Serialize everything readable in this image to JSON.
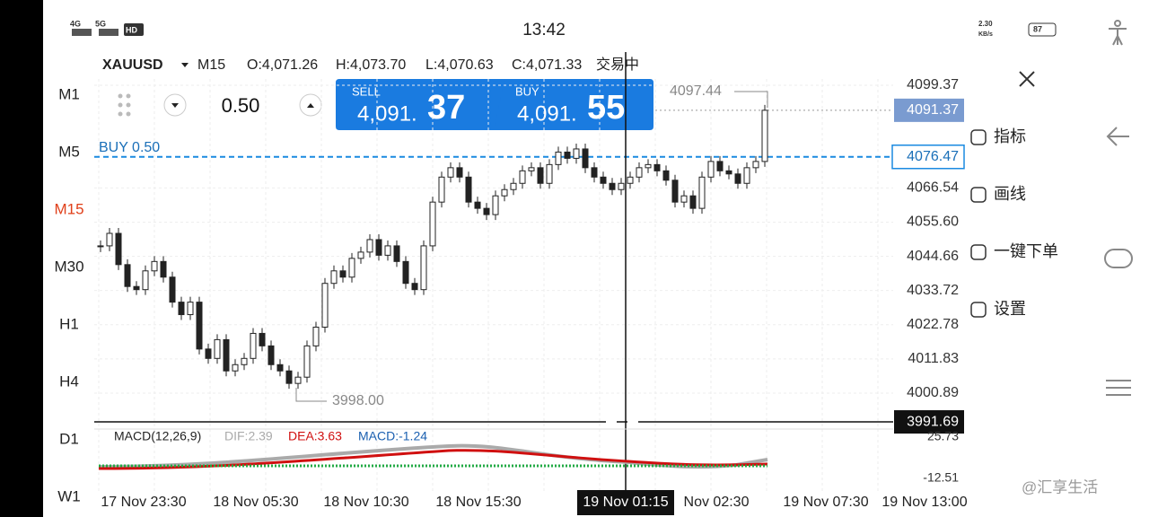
{
  "status_bar": {
    "time": "13:42",
    "network": [
      "4G",
      "5G",
      "HD"
    ],
    "speed": "2.30",
    "speed_unit": "KB/s",
    "battery": "87"
  },
  "timeframes": [
    "M1",
    "M5",
    "M15",
    "M30",
    "H1",
    "H4",
    "D1",
    "W1"
  ],
  "active_timeframe": "M15",
  "header": {
    "symbol": "XAUUSD",
    "period": "M15",
    "open": "O:4,071.26",
    "high": "H:4,073.70",
    "low": "L:4,070.63",
    "close": "C:4,071.33",
    "state": "交易中"
  },
  "order": {
    "volume": "0.50",
    "sell_label": "SELL",
    "sell_big": "4,091.",
    "sell_small": "37",
    "buy_label": "BUY",
    "buy_big": "4,091.",
    "buy_small": "55"
  },
  "position_line": "BUY 0.50",
  "price_axis": {
    "ticks": [
      4099.37,
      4066.54,
      {
        "value": 4055.6,
        "label": "4055.60"
      },
      4044.66,
      4033.72,
      4022.78,
      4011.83,
      4000.89
    ],
    "bid": 4091.37,
    "position": 4076.47,
    "cursor": 3991.69
  },
  "annotations": {
    "high": "4097.44",
    "low": "3998.00"
  },
  "candles": [
    4048,
    4052,
    4042,
    4035,
    4034,
    4040,
    4043,
    4038,
    4030,
    4026,
    4030,
    4015,
    4012,
    4018,
    4008,
    4010,
    4012,
    4020,
    4016,
    4010,
    4008,
    4004,
    4006,
    4016,
    4022,
    4036,
    4040,
    4038,
    4044,
    4046,
    4050,
    4045,
    4048,
    4043,
    4036,
    4034,
    4048,
    4062,
    4070,
    4073,
    4070,
    4062,
    4060,
    4058,
    4064,
    4066,
    4068,
    4072,
    4073,
    4068,
    4074,
    4078,
    4076,
    4079,
    4073,
    4070,
    4068,
    4066,
    4068,
    4070,
    4073,
    4074,
    4072,
    4069,
    4062,
    4064,
    4060,
    4070,
    4075,
    4072,
    4071,
    4068,
    4073,
    4075,
    4091.37
  ],
  "macd": {
    "legend": "MACD(12,26,9)",
    "dif": "DIF:2.39",
    "dea": "DEA:3.63",
    "macd": "MACD:-1.24",
    "ticks": [
      "25.73",
      "-12.51"
    ]
  },
  "time_axis": [
    "17 Nov 23:30",
    "18 Nov 05:30",
    "18 Nov 10:30",
    "18 Nov 15:30",
    "Nov 02:30",
    "19 Nov 07:30",
    "19 Nov 13:00"
  ],
  "cursor_time": "19 Nov 01:15",
  "menu": {
    "items": [
      "指标",
      "画线",
      "一键下单",
      "设置"
    ]
  },
  "watermark": "@汇享生活"
}
